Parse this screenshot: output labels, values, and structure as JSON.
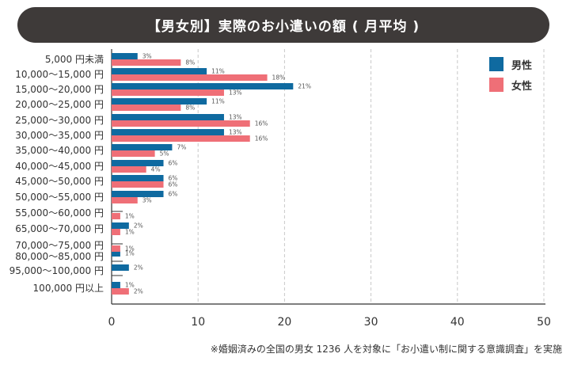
{
  "title": "【男女別】実際のお小遣いの額 ( 月平均 )",
  "footnote": "※婚姻済みの全国の男女 1236 人を対象に「お小遣い制に関する意識調査」を実施",
  "chart_data": {
    "type": "bar",
    "orientation": "horizontal",
    "title": "【男女別】実際のお小遣いの額 ( 月平均 )",
    "categories": [
      "5,000 円未満",
      "10,000〜15,000 円",
      "15,000〜20,000 円",
      "20,000〜25,000 円",
      "25,000〜30,000 円",
      "30,000〜35,000 円",
      "35,000〜40,000 円",
      "40,000〜45,000 円",
      "45,000〜50,000 円",
      "50,000〜55,000 円",
      "55,000〜60,000 円",
      "65,000〜70,000 円",
      "70,000〜75,000 円",
      "80,000〜85,000 円",
      "95,000〜100,000 円",
      "100,000 円以上"
    ],
    "series": [
      {
        "name": "男性",
        "color": "#0f6aa0",
        "values": [
          3,
          11,
          21,
          11,
          13,
          13,
          7,
          6,
          6,
          6,
          null,
          2,
          null,
          1,
          2,
          1
        ],
        "labels": [
          "3%",
          "11%",
          "21%",
          "11%",
          "13%",
          "13%",
          "7%",
          "6%",
          "6%",
          "6%",
          "",
          "2%",
          "",
          "1%",
          "2%",
          "1%"
        ]
      },
      {
        "name": "女性",
        "color": "#ef6f77",
        "values": [
          8,
          18,
          13,
          8,
          16,
          16,
          5,
          4,
          6,
          3,
          1,
          1,
          1,
          null,
          null,
          2
        ],
        "labels": [
          "8%",
          "18%",
          "13%",
          "8%",
          "16%",
          "16%",
          "5%",
          "4%",
          "6%",
          "3%",
          "1%",
          "1%",
          "1%",
          "",
          "",
          "2%"
        ]
      }
    ],
    "xlim": [
      0,
      50
    ],
    "xticks": [
      0,
      10,
      20,
      30,
      40,
      50
    ],
    "xlabel": "",
    "ylabel": "",
    "grid": "vertical dashed",
    "legend_position": "top-right"
  }
}
